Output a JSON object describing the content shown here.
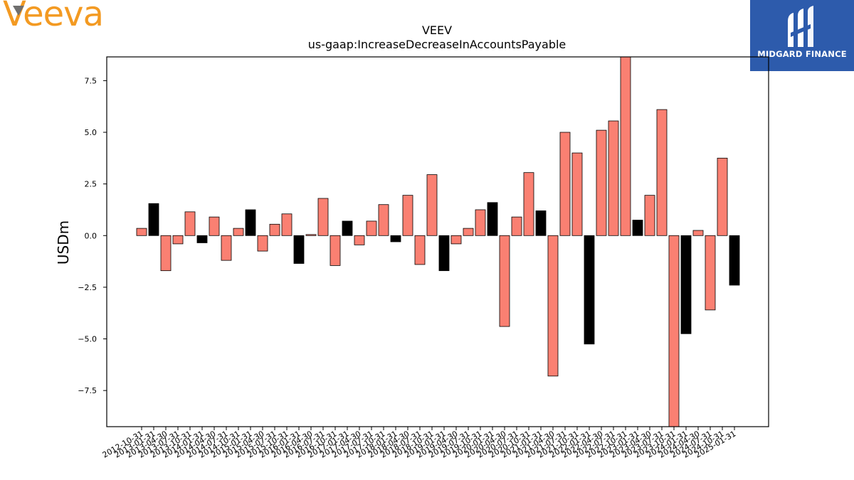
{
  "logos": {
    "left_brand": "Veeva",
    "right_brand": "MIDGARD FINANCE"
  },
  "colors": {
    "positive_bar": "#fa8072",
    "negative_bar": "#000000",
    "left_brand": "#f39a22",
    "right_brand_bg": "#2d5bac"
  },
  "chart_data": {
    "type": "bar",
    "title": "VEEV",
    "subtitle": "us-gaap:IncreaseDecreaseInAccountsPayable",
    "xlabel": "",
    "ylabel": "USDm",
    "ylim": [
      -9.25,
      8.65
    ],
    "yticks": [
      -7.5,
      -5.0,
      -2.5,
      0.0,
      2.5,
      5.0,
      7.5
    ],
    "ytick_labels": [
      "−7.5",
      "−5.0",
      "−2.5",
      "0.0",
      "2.5",
      "5.0",
      "7.5"
    ],
    "grid": false,
    "categories": [
      "2012-10-31",
      "2013-01-31",
      "2013-04-30",
      "2013-07-31",
      "2013-10-31",
      "2014-01-31",
      "2014-04-30",
      "2014-07-31",
      "2014-10-31",
      "2015-01-31",
      "2015-04-30",
      "2015-07-31",
      "2015-10-31",
      "2016-01-31",
      "2016-04-30",
      "2016-07-31",
      "2016-10-31",
      "2017-01-31",
      "2017-04-30",
      "2017-07-31",
      "2017-10-31",
      "2018-01-31",
      "2018-04-30",
      "2018-07-31",
      "2018-10-31",
      "2019-01-31",
      "2019-04-30",
      "2019-07-31",
      "2019-10-31",
      "2020-01-31",
      "2020-04-30",
      "2020-07-31",
      "2020-10-31",
      "2021-01-31",
      "2021-04-30",
      "2021-07-31",
      "2021-10-31",
      "2022-01-31",
      "2022-04-30",
      "2022-07-31",
      "2022-10-31",
      "2023-01-31",
      "2023-04-30",
      "2023-07-31",
      "2023-10-31",
      "2024-01-31",
      "2024-04-30",
      "2024-07-31",
      "2024-10-31",
      "2025-01-31"
    ],
    "values": [
      0.35,
      1.55,
      -1.7,
      -0.4,
      1.15,
      -0.35,
      0.9,
      -1.2,
      0.35,
      1.25,
      -0.75,
      0.55,
      1.05,
      -1.35,
      0.05,
      1.8,
      -1.45,
      0.7,
      -0.45,
      0.7,
      1.5,
      -0.3,
      1.95,
      -1.4,
      2.95,
      -1.7,
      -0.4,
      0.35,
      1.25,
      1.6,
      -4.4,
      0.9,
      3.05,
      1.2,
      -6.8,
      5.0,
      4.0,
      -5.25,
      5.1,
      5.55,
      8.7,
      0.75,
      1.95,
      6.1,
      -9.3,
      -4.75,
      0.25,
      -3.6,
      3.75,
      -2.4
    ],
    "bar_colors": [
      "salmon",
      "black",
      "salmon",
      "salmon",
      "salmon",
      "black",
      "salmon",
      "salmon",
      "salmon",
      "black",
      "salmon",
      "salmon",
      "salmon",
      "black",
      "salmon",
      "salmon",
      "salmon",
      "black",
      "salmon",
      "salmon",
      "salmon",
      "black",
      "salmon",
      "salmon",
      "salmon",
      "black",
      "salmon",
      "salmon",
      "salmon",
      "black",
      "salmon",
      "salmon",
      "salmon",
      "black",
      "salmon",
      "salmon",
      "salmon",
      "black",
      "salmon",
      "salmon",
      "salmon",
      "black",
      "salmon",
      "salmon",
      "salmon",
      "black",
      "salmon",
      "salmon",
      "salmon",
      "black"
    ]
  }
}
